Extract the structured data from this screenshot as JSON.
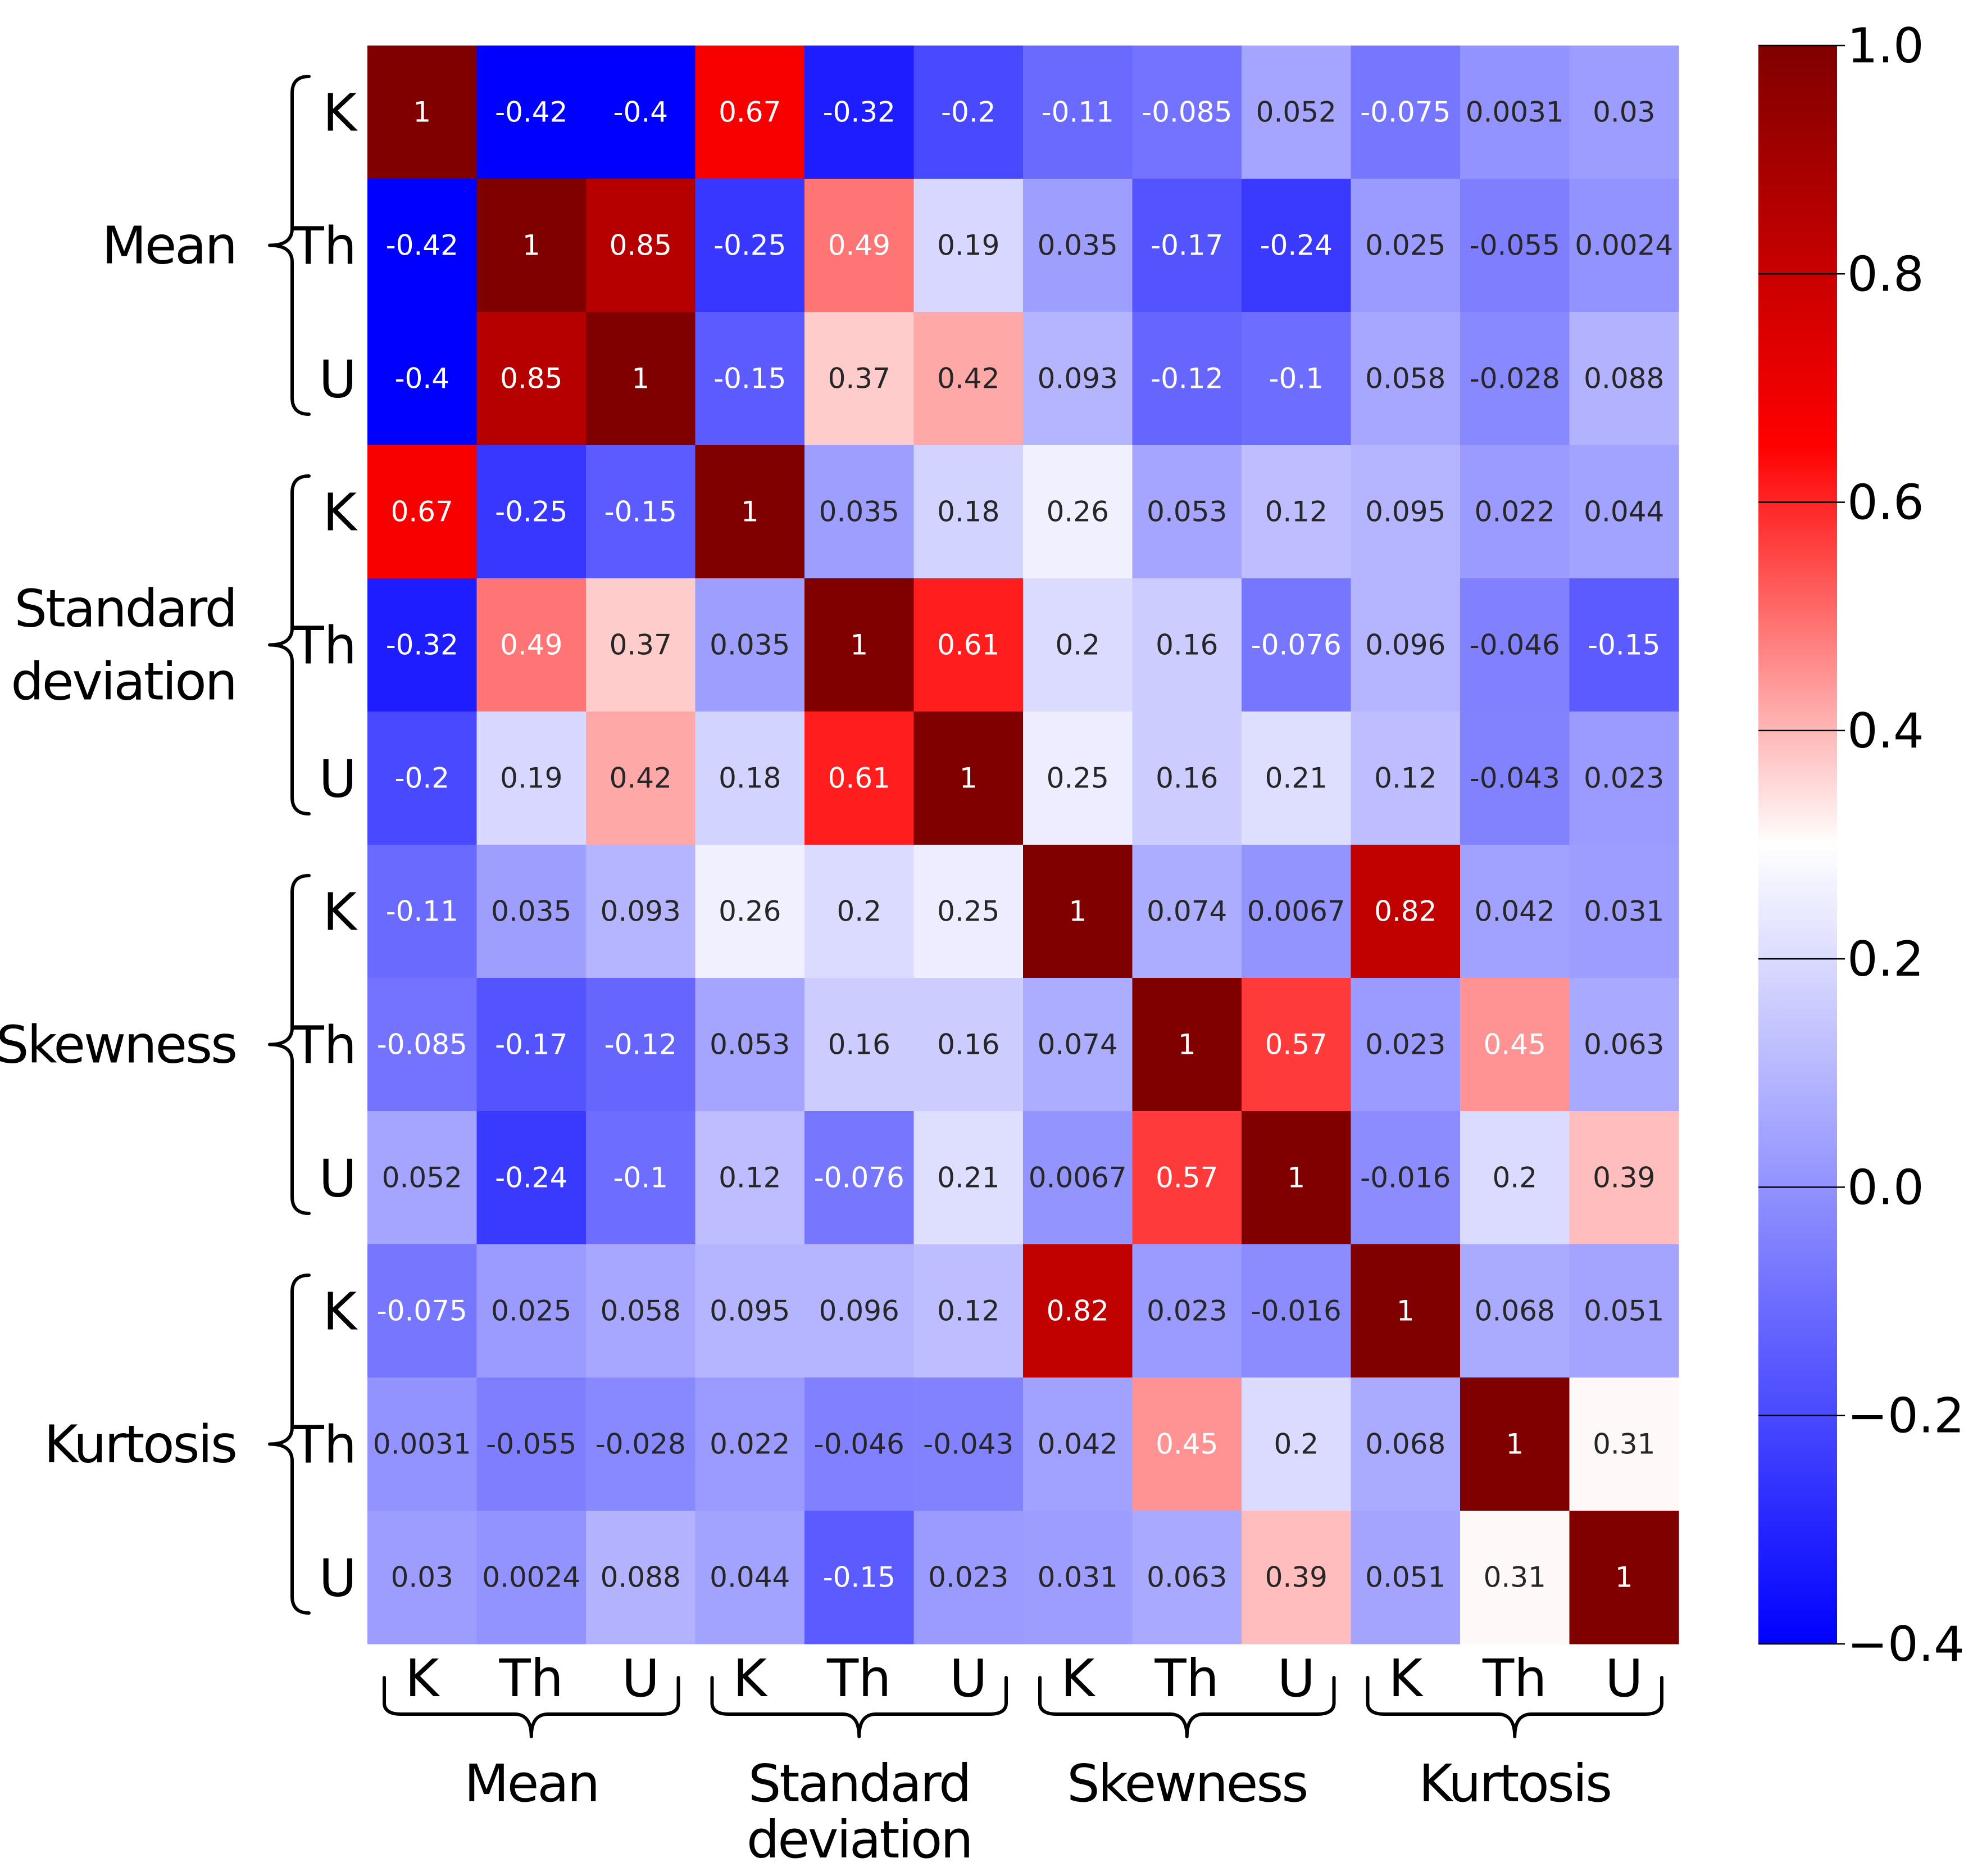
{
  "chart_data": {
    "type": "heatmap",
    "title": "",
    "colormap": "bwr",
    "vmin": -0.4,
    "vmax": 1.0,
    "row_tick_labels": [
      "K",
      "Th",
      "U",
      "K",
      "Th",
      "U",
      "K",
      "Th",
      "U",
      "K",
      "Th",
      "U"
    ],
    "col_tick_labels": [
      "K",
      "Th",
      "U",
      "K",
      "Th",
      "U",
      "K",
      "Th",
      "U",
      "K",
      "Th",
      "U"
    ],
    "groups": [
      {
        "name": "Mean",
        "lines": [
          "Mean"
        ]
      },
      {
        "name": "Standard deviation",
        "lines": [
          "Standard",
          "deviation"
        ]
      },
      {
        "name": "Skewness",
        "lines": [
          "Skewness"
        ]
      },
      {
        "name": "Kurtosis",
        "lines": [
          "Kurtosis"
        ]
      }
    ],
    "values": [
      [
        1,
        -0.42,
        -0.4,
        0.67,
        -0.32,
        -0.2,
        -0.11,
        -0.085,
        0.052,
        -0.075,
        0.0031,
        0.03
      ],
      [
        -0.42,
        1,
        0.85,
        -0.25,
        0.49,
        0.19,
        0.035,
        -0.17,
        -0.24,
        0.025,
        -0.055,
        0.0024
      ],
      [
        -0.4,
        0.85,
        1,
        -0.15,
        0.37,
        0.42,
        0.093,
        -0.12,
        -0.1,
        0.058,
        -0.028,
        0.088
      ],
      [
        0.67,
        -0.25,
        -0.15,
        1,
        0.035,
        0.18,
        0.26,
        0.053,
        0.12,
        0.095,
        0.022,
        0.044
      ],
      [
        -0.32,
        0.49,
        0.37,
        0.035,
        1,
        0.61,
        0.2,
        0.16,
        -0.076,
        0.096,
        -0.046,
        -0.15
      ],
      [
        -0.2,
        0.19,
        0.42,
        0.18,
        0.61,
        1,
        0.25,
        0.16,
        0.21,
        0.12,
        -0.043,
        0.023
      ],
      [
        -0.11,
        0.035,
        0.093,
        0.26,
        0.2,
        0.25,
        1,
        0.074,
        0.0067,
        0.82,
        0.042,
        0.031
      ],
      [
        -0.085,
        -0.17,
        -0.12,
        0.053,
        0.16,
        0.16,
        0.074,
        1,
        0.57,
        0.023,
        0.45,
        0.063
      ],
      [
        0.052,
        -0.24,
        -0.1,
        0.12,
        -0.076,
        0.21,
        0.0067,
        0.57,
        1,
        -0.016,
        0.2,
        0.39
      ],
      [
        -0.075,
        0.025,
        0.058,
        0.095,
        0.096,
        0.12,
        0.82,
        0.023,
        -0.016,
        1,
        0.068,
        0.051
      ],
      [
        0.0031,
        -0.055,
        -0.028,
        0.022,
        -0.046,
        -0.043,
        0.042,
        0.45,
        0.2,
        0.068,
        1,
        0.31
      ],
      [
        0.03,
        0.0024,
        0.088,
        0.044,
        -0.15,
        0.023,
        0.031,
        0.063,
        0.39,
        0.051,
        0.31,
        1
      ]
    ],
    "colorbar": {
      "ticks": [
        1.0,
        0.8,
        0.6,
        0.4,
        0.2,
        0.0,
        -0.2,
        -0.4
      ],
      "tick_labels": [
        "1.0",
        "0.8",
        "0.6",
        "0.4",
        "0.2",
        "0.0",
        "−0.2",
        "−0.4"
      ]
    }
  }
}
